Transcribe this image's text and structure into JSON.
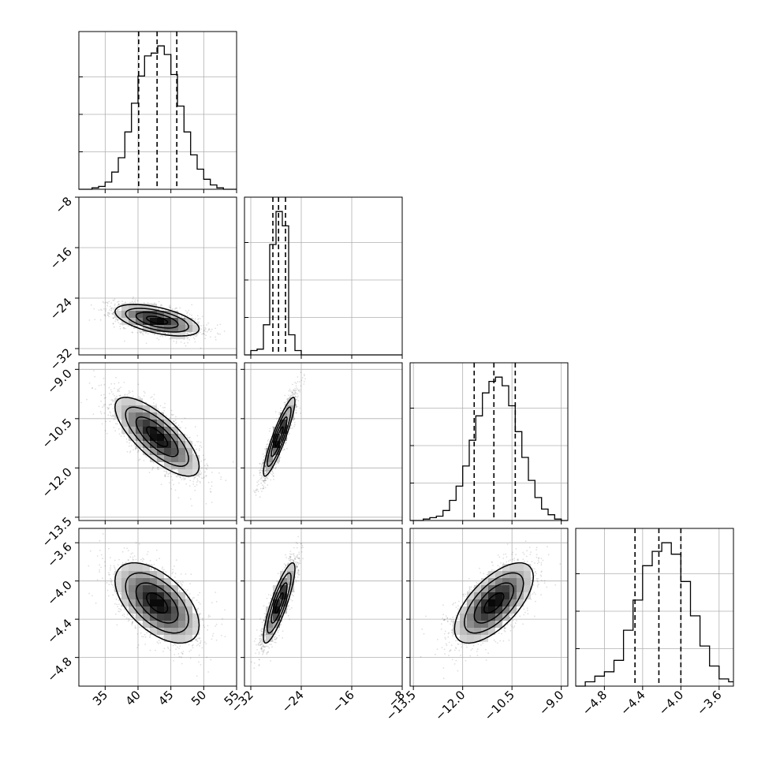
{
  "chart_data": {
    "type": "corner",
    "n_params": 4,
    "grid": true,
    "params": [
      {
        "range": [
          31,
          55
        ],
        "ticks": [
          35,
          40,
          45,
          50,
          55
        ],
        "tick_labels": [
          "35",
          "40",
          "45",
          "50",
          "55"
        ],
        "mean": 42.9,
        "std": 3.2,
        "quantiles": [
          40.1,
          42.9,
          45.9
        ]
      },
      {
        "range": [
          -33,
          -8
        ],
        "ticks": [
          -32,
          -24,
          -16,
          -8
        ],
        "tick_labels": [
          "−32",
          "−24",
          "−16",
          "−8"
        ],
        "mean": -27.5,
        "std": 1.25,
        "quantiles": [
          -28.5,
          -27.6,
          -26.5
        ]
      },
      {
        "range": [
          -13.6,
          -8.8
        ],
        "ticks": [
          -13.5,
          -12.0,
          -10.5,
          -9.0
        ],
        "tick_labels": [
          "−13.5",
          "−12.0",
          "−10.5",
          "−9.0"
        ],
        "mean": -11.05,
        "std": 0.6,
        "quantiles": [
          -11.65,
          -11.05,
          -10.4
        ]
      },
      {
        "range": [
          -5.1,
          -3.45
        ],
        "ticks": [
          -4.8,
          -4.4,
          -4.0,
          -3.6
        ],
        "tick_labels": [
          "−4.8",
          "−4.4",
          "−4.0",
          "−3.6"
        ],
        "mean": -4.23,
        "std": 0.21,
        "quantiles": [
          -4.48,
          -4.23,
          -4.0
        ]
      }
    ],
    "histograms": [
      {
        "bin_edges": [
          31,
          32,
          33,
          34,
          35,
          36,
          37,
          38,
          39,
          40,
          41,
          42,
          43,
          44,
          45,
          46,
          47,
          48,
          49,
          50,
          51,
          52,
          53,
          54,
          55
        ],
        "counts": [
          0,
          0,
          1,
          2,
          5,
          12,
          22,
          40,
          60,
          79,
          93,
          95,
          100,
          94,
          80,
          58,
          40,
          24,
          14,
          7,
          3,
          1,
          0,
          0
        ]
      },
      {
        "bin_edges": [
          -33,
          -32,
          -31,
          -30,
          -29,
          -28,
          -27,
          -26,
          -25,
          -24,
          -23,
          -22,
          -21,
          -20,
          -19,
          -18,
          -17,
          -16,
          -15,
          -14,
          -13,
          -12,
          -11,
          -10,
          -9,
          -8
        ],
        "counts": [
          0,
          3,
          4,
          21,
          77,
          100,
          90,
          14,
          3,
          0,
          0,
          0,
          0,
          0,
          0,
          0,
          0,
          0,
          0,
          0,
          0,
          0,
          0,
          0,
          0
        ]
      },
      {
        "bin_edges": [
          -13.6,
          -13.4,
          -13.2,
          -13.0,
          -12.8,
          -12.6,
          -12.4,
          -12.2,
          -12.0,
          -11.8,
          -11.6,
          -11.4,
          -11.2,
          -11.0,
          -10.8,
          -10.6,
          -10.4,
          -10.2,
          -10.0,
          -9.8,
          -9.6,
          -9.4,
          -9.2,
          -9.0,
          -8.8
        ],
        "counts": [
          0,
          0,
          1,
          2,
          3,
          7,
          14,
          24,
          38,
          56,
          73,
          89,
          97,
          100,
          94,
          80,
          62,
          44,
          28,
          16,
          8,
          4,
          1,
          0
        ]
      },
      {
        "bin_edges": [
          -5.1,
          -5.0,
          -4.9,
          -4.8,
          -4.7,
          -4.6,
          -4.5,
          -4.4,
          -4.3,
          -4.2,
          -4.1,
          -4.0,
          -3.9,
          -3.8,
          -3.7,
          -3.6,
          -3.5,
          -3.45
        ],
        "counts": [
          0,
          3,
          7,
          10,
          18,
          39,
          60,
          84,
          94,
          100,
          92,
          73,
          49,
          28,
          14,
          5,
          3
        ]
      }
    ],
    "pairs": [
      {
        "x": 0,
        "y": 1,
        "correlation": -0.55
      },
      {
        "x": 0,
        "y": 2,
        "correlation": -0.75
      },
      {
        "x": 1,
        "y": 2,
        "correlation": 0.9
      },
      {
        "x": 0,
        "y": 3,
        "correlation": -0.55
      },
      {
        "x": 1,
        "y": 3,
        "correlation": 0.85
      },
      {
        "x": 2,
        "y": 3,
        "correlation": 0.65
      }
    ],
    "contour_levels_sigma": [
      0.5,
      1.0,
      1.5,
      2.0
    ]
  }
}
